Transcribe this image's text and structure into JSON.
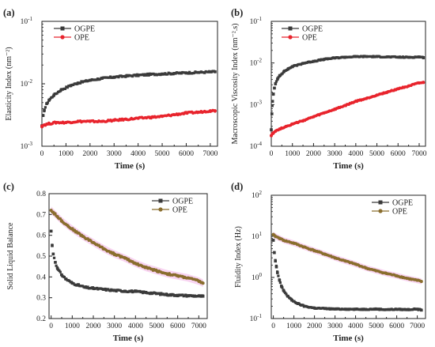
{
  "colors": {
    "ogpe": "#3a3a3a",
    "ope": "#e8242d",
    "ope_c": "#8a6e2e",
    "ope_band": "#f6c6ec",
    "axis": "#222222"
  },
  "chart_data": [
    {
      "type": "scatter",
      "panel_label": "(a)",
      "xlabel": "Time (s)",
      "ylabel": "Elasticity Index (nm⁻²)",
      "ylog": true,
      "xlim": [
        0,
        7300
      ],
      "ylim": [
        0.001,
        0.1
      ],
      "xticks": [
        0,
        1000,
        2000,
        3000,
        4000,
        5000,
        6000,
        7000
      ],
      "yticks": [
        {
          "value": 0.001,
          "label": "10",
          "exp": "-3"
        },
        {
          "value": 0.01,
          "label": "10",
          "exp": "-2"
        },
        {
          "value": 0.1,
          "label": "10",
          "exp": "-1"
        }
      ],
      "legend_position": "top-left",
      "series": [
        {
          "name": "OGPE",
          "marker": "square",
          "x": [
            0,
            50,
            100,
            200,
            300,
            500,
            800,
            1200,
            1500,
            2000,
            2500,
            3000,
            3500,
            4000,
            4500,
            5000,
            5500,
            6000,
            6500,
            7000,
            7200
          ],
          "y": [
            0.0021,
            0.0031,
            0.0038,
            0.0048,
            0.0055,
            0.0066,
            0.008,
            0.0094,
            0.0103,
            0.0114,
            0.0122,
            0.0128,
            0.0133,
            0.0137,
            0.0141,
            0.0144,
            0.0147,
            0.015,
            0.0152,
            0.0155,
            0.0156
          ]
        },
        {
          "name": "OPE",
          "marker": "circle",
          "x": [
            0,
            100,
            300,
            600,
            1000,
            1500,
            2000,
            2500,
            3000,
            3500,
            4000,
            4500,
            5000,
            5500,
            6000,
            6500,
            7000,
            7200
          ],
          "y": [
            0.0021,
            0.0022,
            0.0023,
            0.0024,
            0.0024,
            0.0025,
            0.0025,
            0.0025,
            0.0026,
            0.0027,
            0.0028,
            0.0029,
            0.003,
            0.0032,
            0.0034,
            0.0035,
            0.0037,
            0.0037
          ]
        }
      ]
    },
    {
      "type": "scatter",
      "panel_label": "(b)",
      "xlabel": "Time (s)",
      "ylabel": "Macroscopic Viscosity Index (nm⁻².s)",
      "ylog": true,
      "xlim": [
        0,
        7300
      ],
      "ylim": [
        0.0001,
        0.1
      ],
      "xticks": [
        0,
        1000,
        2000,
        3000,
        4000,
        5000,
        6000,
        7000
      ],
      "yticks": [
        {
          "value": 0.0001,
          "label": "10",
          "exp": "-4"
        },
        {
          "value": 0.001,
          "label": "10",
          "exp": "-3"
        },
        {
          "value": 0.01,
          "label": "10",
          "exp": "-2"
        },
        {
          "value": 0.1,
          "label": "10",
          "exp": "-1"
        }
      ],
      "legend_position": "top-left",
      "series": [
        {
          "name": "OGPE",
          "marker": "square",
          "x": [
            0,
            30,
            60,
            100,
            150,
            200,
            300,
            400,
            600,
            800,
            1000,
            1500,
            2000,
            2500,
            3000,
            3500,
            4000,
            4500,
            5000,
            5500,
            6000,
            6500,
            7000,
            7200
          ],
          "y": [
            0.00025,
            0.0006,
            0.0012,
            0.0018,
            0.0025,
            0.0032,
            0.0042,
            0.005,
            0.0062,
            0.0072,
            0.0082,
            0.0098,
            0.011,
            0.0122,
            0.0132,
            0.0138,
            0.0142,
            0.0143,
            0.0142,
            0.014,
            0.0138,
            0.0137,
            0.014,
            0.0135
          ]
        },
        {
          "name": "OPE",
          "marker": "circle",
          "x": [
            0,
            50,
            100,
            200,
            400,
            700,
            1000,
            1500,
            2000,
            2500,
            3000,
            3500,
            4000,
            4500,
            5000,
            5500,
            6000,
            6500,
            7000,
            7200
          ],
          "y": [
            0.00018,
            0.0002,
            0.00021,
            0.00023,
            0.00026,
            0.0003,
            0.00034,
            0.00041,
            0.00051,
            0.00063,
            0.00077,
            0.00095,
            0.0012,
            0.0014,
            0.0017,
            0.002,
            0.0024,
            0.0028,
            0.0033,
            0.0034
          ]
        }
      ]
    },
    {
      "type": "scatter",
      "panel_label": "(c)",
      "xlabel": "Time (s)",
      "ylabel": "Solid Liquid Balance",
      "ylog": false,
      "xlim": [
        -100,
        7400
      ],
      "ylim": [
        0.2,
        0.8
      ],
      "xticks": [
        0,
        1000,
        2000,
        3000,
        4000,
        5000,
        6000,
        7000
      ],
      "yticks": [
        {
          "value": 0.2,
          "label": "0.2"
        },
        {
          "value": 0.3,
          "label": "0.3"
        },
        {
          "value": 0.4,
          "label": "0.4"
        },
        {
          "value": 0.5,
          "label": "0.5"
        },
        {
          "value": 0.6,
          "label": "0.6"
        },
        {
          "value": 0.7,
          "label": "0.7"
        },
        {
          "value": 0.8,
          "label": "0.8"
        }
      ],
      "legend_position": "top-right",
      "series": [
        {
          "name": "OGPE",
          "marker": "square",
          "x": [
            0,
            50,
            100,
            200,
            300,
            500,
            700,
            1000,
            1300,
            1600,
            2000,
            2500,
            3000,
            3500,
            4000,
            4500,
            5000,
            5500,
            6000,
            6500,
            7000,
            7200
          ],
          "y": [
            0.62,
            0.55,
            0.51,
            0.47,
            0.44,
            0.41,
            0.39,
            0.37,
            0.36,
            0.35,
            0.345,
            0.34,
            0.335,
            0.332,
            0.33,
            0.325,
            0.32,
            0.315,
            0.312,
            0.31,
            0.308,
            0.307
          ]
        },
        {
          "name": "OPE",
          "marker": "circle",
          "x": [
            0,
            100,
            300,
            500,
            800,
            1000,
            1500,
            2000,
            2500,
            3000,
            3500,
            4000,
            4500,
            5000,
            5500,
            6000,
            6500,
            7000,
            7200
          ],
          "y": [
            0.72,
            0.71,
            0.69,
            0.67,
            0.645,
            0.63,
            0.595,
            0.565,
            0.535,
            0.51,
            0.49,
            0.465,
            0.445,
            0.43,
            0.415,
            0.405,
            0.395,
            0.38,
            0.37
          ]
        }
      ]
    },
    {
      "type": "scatter",
      "panel_label": "(d)",
      "xlabel": "Time (s)",
      "ylabel": "Fluidity Index (Hz)",
      "ylog": true,
      "xlim": [
        -100,
        7400
      ],
      "ylim": [
        0.1,
        100
      ],
      "xticks": [
        0,
        1000,
        2000,
        3000,
        4000,
        5000,
        6000,
        7000
      ],
      "yticks": [
        {
          "value": 0.1,
          "label": "10",
          "exp": "-1"
        },
        {
          "value": 1,
          "label": "10",
          "exp": "0"
        },
        {
          "value": 10,
          "label": "10",
          "exp": "1"
        },
        {
          "value": 100,
          "label": "10",
          "exp": "2"
        }
      ],
      "legend_position": "top-right",
      "series": [
        {
          "name": "OGPE",
          "marker": "square",
          "x": [
            0,
            50,
            100,
            150,
            200,
            300,
            400,
            500,
            700,
            900,
            1200,
            1500,
            2000,
            2500,
            3000,
            3500,
            4000,
            4500,
            5000,
            5500,
            6000,
            6500,
            7000,
            7200
          ],
          "y": [
            8,
            4,
            2.5,
            1.8,
            1.3,
            0.85,
            0.6,
            0.48,
            0.35,
            0.28,
            0.23,
            0.2,
            0.18,
            0.175,
            0.17,
            0.17,
            0.168,
            0.168,
            0.17,
            0.165,
            0.168,
            0.165,
            0.17,
            0.16
          ]
        },
        {
          "name": "OPE",
          "marker": "circle",
          "x": [
            0,
            100,
            300,
            500,
            1000,
            1500,
            2000,
            2500,
            3000,
            3500,
            4000,
            4500,
            5000,
            5500,
            6000,
            6500,
            7000,
            7200
          ],
          "y": [
            11,
            10,
            9,
            8,
            6.8,
            5.5,
            4.5,
            3.7,
            3.0,
            2.5,
            2.1,
            1.7,
            1.45,
            1.25,
            1.1,
            0.95,
            0.85,
            0.8
          ]
        }
      ]
    }
  ]
}
